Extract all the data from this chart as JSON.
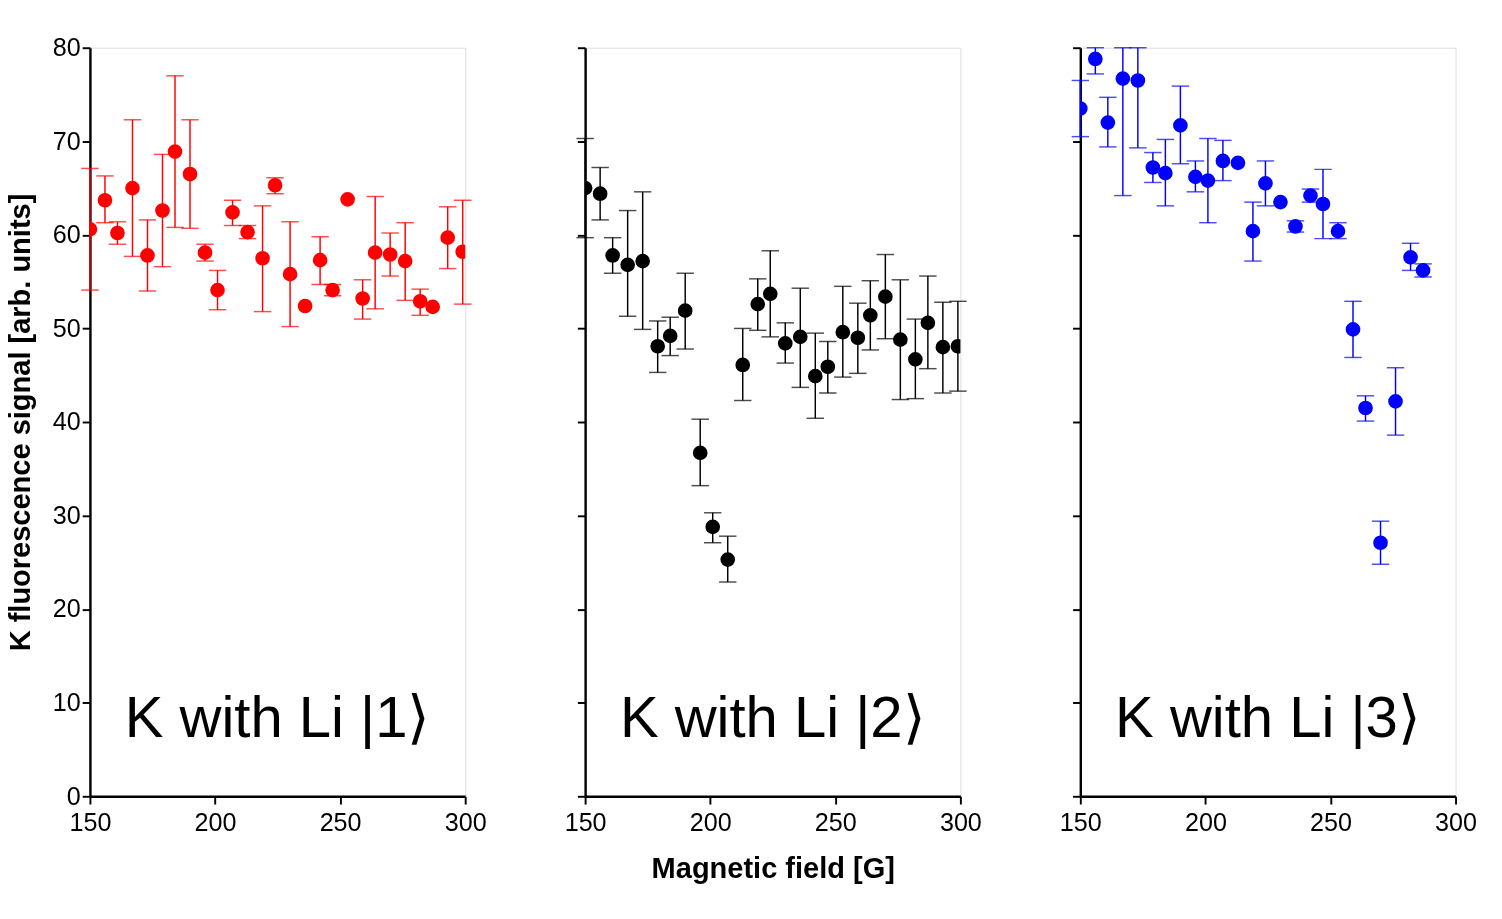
{
  "chart_data": [
    {
      "type": "scatter",
      "ylabel": "K fluorescence signal [arb. units]",
      "annotations": [
        "K with Li |1⟩"
      ],
      "xlim": [
        150,
        300
      ],
      "xticks": [
        150,
        200,
        250,
        300
      ],
      "ylim": [
        0,
        80
      ],
      "yticks": [
        0,
        10,
        20,
        30,
        40,
        50,
        60,
        70,
        80
      ],
      "marker": "circle",
      "series": [
        {
          "color": "#ff0000",
          "x": [
            150,
            156,
            161,
            167,
            173,
            179,
            184,
            190,
            196,
            201,
            207,
            213,
            219,
            224,
            230,
            236,
            242,
            247,
            253,
            259,
            264,
            270,
            276,
            282,
            287,
            293,
            299
          ],
          "values": [
            60.6,
            63.7,
            60.2,
            65.0,
            57.8,
            62.6,
            68.9,
            66.5,
            58.1,
            54.1,
            62.4,
            60.3,
            57.5,
            65.3,
            55.8,
            52.4,
            57.3,
            54.1,
            63.8,
            53.2,
            58.1,
            57.9,
            57.2,
            52.9,
            52.3,
            59.7,
            58.2
          ],
          "errors": [
            [
              54.1,
              67.1
            ],
            [
              61.3,
              66.3
            ],
            [
              59.0,
              61.4
            ],
            [
              57.7,
              72.3
            ],
            [
              54.0,
              61.6
            ],
            [
              56.6,
              68.6
            ],
            [
              60.8,
              77.0
            ],
            [
              60.7,
              72.3
            ],
            [
              57.2,
              59.0
            ],
            [
              52.0,
              56.2
            ],
            [
              61.0,
              63.7
            ],
            [
              59.6,
              61.0
            ],
            [
              51.8,
              63.1
            ],
            [
              64.4,
              66.1
            ],
            [
              50.2,
              61.4
            ],
            null,
            [
              54.7,
              59.8
            ],
            [
              53.5,
              54.7
            ],
            null,
            [
              51.0,
              55.2
            ],
            [
              52.1,
              64.1
            ],
            [
              55.6,
              60.2
            ],
            [
              53.0,
              61.3
            ],
            [
              51.4,
              54.2
            ],
            null,
            [
              56.4,
              63.0
            ],
            [
              52.6,
              63.7
            ]
          ]
        }
      ]
    },
    {
      "type": "scatter",
      "xlabel": "Magnetic field [G]",
      "annotations": [
        "K with Li |2⟩"
      ],
      "xlim": [
        150,
        300
      ],
      "xticks": [
        150,
        200,
        250,
        300
      ],
      "ylim": [
        0,
        80
      ],
      "yticks": [
        0,
        10,
        20,
        30,
        40,
        50,
        60,
        70,
        80
      ],
      "tick_labels": "x",
      "marker": "circle",
      "series": [
        {
          "color": "#000000",
          "x": [
            150,
            156,
            161,
            167,
            173,
            179,
            184,
            190,
            196,
            201,
            207,
            213,
            219,
            224,
            230,
            236,
            242,
            247,
            253,
            259,
            264,
            270,
            276,
            282,
            287,
            293,
            299
          ],
          "values": [
            65.0,
            64.4,
            57.8,
            56.8,
            57.2,
            48.1,
            49.2,
            51.9,
            36.7,
            28.8,
            25.3,
            46.1,
            52.6,
            53.7,
            48.4,
            49.1,
            44.9,
            45.9,
            49.6,
            49.0,
            51.4,
            53.4,
            48.8,
            46.7,
            50.6,
            48.0,
            48.1
          ],
          "errors": [
            [
              59.7,
              70.3
            ],
            [
              61.6,
              67.2
            ],
            [
              55.9,
              59.7
            ],
            [
              51.3,
              62.6
            ],
            [
              49.9,
              64.6
            ],
            [
              45.3,
              50.8
            ],
            [
              47.1,
              51.2
            ],
            [
              47.8,
              55.9
            ],
            [
              33.2,
              40.3
            ],
            [
              27.1,
              30.3
            ],
            [
              22.9,
              27.8
            ],
            [
              42.3,
              50.0
            ],
            [
              49.8,
              55.3
            ],
            [
              49.1,
              58.3
            ],
            [
              46.3,
              50.6
            ],
            [
              43.7,
              54.3
            ],
            [
              40.4,
              49.5
            ],
            [
              43.1,
              48.6
            ],
            [
              44.8,
              54.5
            ],
            [
              45.2,
              52.7
            ],
            [
              47.7,
              55.1
            ],
            [
              48.9,
              57.9
            ],
            [
              42.4,
              55.2
            ],
            [
              42.5,
              51.0
            ],
            [
              45.7,
              55.6
            ],
            [
              43.1,
              52.8
            ],
            [
              43.3,
              52.9
            ]
          ]
        }
      ]
    },
    {
      "type": "scatter",
      "annotations": [
        "K with Li |3⟩"
      ],
      "xlim": [
        150,
        300
      ],
      "xticks": [
        150,
        200,
        250,
        300
      ],
      "ylim": [
        0,
        80
      ],
      "yticks": [
        0,
        10,
        20,
        30,
        40,
        50,
        60,
        70,
        80
      ],
      "tick_labels": "x",
      "marker": "circle",
      "series": [
        {
          "color": "#0000ff",
          "x": [
            150,
            156,
            161,
            167,
            173,
            179,
            184,
            190,
            196,
            201,
            207,
            213,
            219,
            224,
            230,
            236,
            242,
            247,
            253,
            259,
            264,
            270,
            276,
            282,
            287
          ],
          "values": [
            73.5,
            78.8,
            72.0,
            76.7,
            76.5,
            67.2,
            66.6,
            71.7,
            66.2,
            65.8,
            67.9,
            67.7,
            60.4,
            65.5,
            63.5,
            60.9,
            64.2,
            63.3,
            60.4,
            49.9,
            41.5,
            27.1,
            42.2,
            57.6,
            56.2
          ],
          "errors": [
            [
              70.5,
              76.5
            ],
            [
              77.2,
              80
            ],
            [
              69.4,
              74.7
            ],
            [
              64.2,
              80
            ],
            [
              69.3,
              80
            ],
            [
              65.6,
              68.8
            ],
            [
              63.1,
              70.2
            ],
            [
              67.6,
              75.9
            ],
            [
              64.6,
              67.9
            ],
            [
              61.3,
              70.3
            ],
            [
              65.8,
              70.1
            ],
            null,
            [
              57.2,
              63.5
            ],
            [
              63.1,
              67.9
            ],
            null,
            [
              60.3,
              61.5
            ],
            [
              63.5,
              64.9
            ],
            [
              59.6,
              67.0
            ],
            [
              59.6,
              61.3
            ],
            [
              46.9,
              52.9
            ],
            [
              40.1,
              42.8
            ],
            [
              24.8,
              29.4
            ],
            [
              38.6,
              45.8
            ],
            [
              56.2,
              59.1
            ],
            [
              55.5,
              56.9
            ]
          ]
        }
      ]
    }
  ]
}
